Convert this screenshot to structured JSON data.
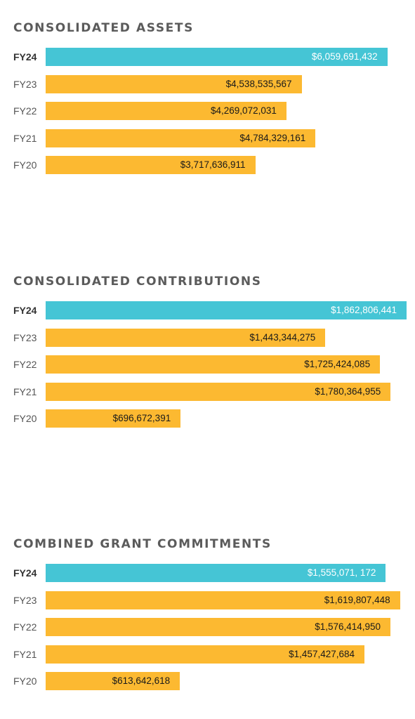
{
  "colors": {
    "current": "#45c5d5",
    "prior": "#fcb931"
  },
  "chart_data": [
    {
      "type": "bar",
      "orientation": "horizontal",
      "title": "CONSOLIDATED ASSETS",
      "categories": [
        "FY24",
        "FY23",
        "FY22",
        "FY21",
        "FY20"
      ],
      "values": [
        6059691432,
        4538535567,
        4269072031,
        4784329161,
        3717636911
      ],
      "labels": [
        "$6,059,691,432",
        "$4,538,535,567",
        "$4,269,072,031",
        "$4,784,329,161",
        "$3,717,636,911"
      ],
      "highlight": "FY24",
      "xlim": [
        0,
        6400000000
      ]
    },
    {
      "type": "bar",
      "orientation": "horizontal",
      "title": "CONSOLIDATED CONTRIBUTIONS",
      "categories": [
        "FY24",
        "FY23",
        "FY22",
        "FY21",
        "FY20"
      ],
      "values": [
        1862806441,
        1443344275,
        1725424085,
        1780364955,
        696672391
      ],
      "labels": [
        "$1,862,806,441",
        "$1,443,344,275",
        "$1,725,424,085",
        "$1,780,364,955",
        "$696,672,391"
      ],
      "highlight": "FY24",
      "xlim": [
        0,
        1862806441
      ]
    },
    {
      "type": "bar",
      "orientation": "horizontal",
      "title": "COMBINED GRANT COMMITMENTS",
      "categories": [
        "FY24",
        "FY23",
        "FY22",
        "FY21",
        "FY20"
      ],
      "values": [
        1555071172,
        1619807448,
        1576414950,
        1457427684,
        613642618
      ],
      "labels": [
        "$1,555,071, 172",
        "$1,619,807,448",
        "$1,576,414,950",
        "$1,457,427,684",
        "$613,642,618"
      ],
      "highlight": "FY24",
      "xlim": [
        0,
        1650000000
      ]
    }
  ]
}
